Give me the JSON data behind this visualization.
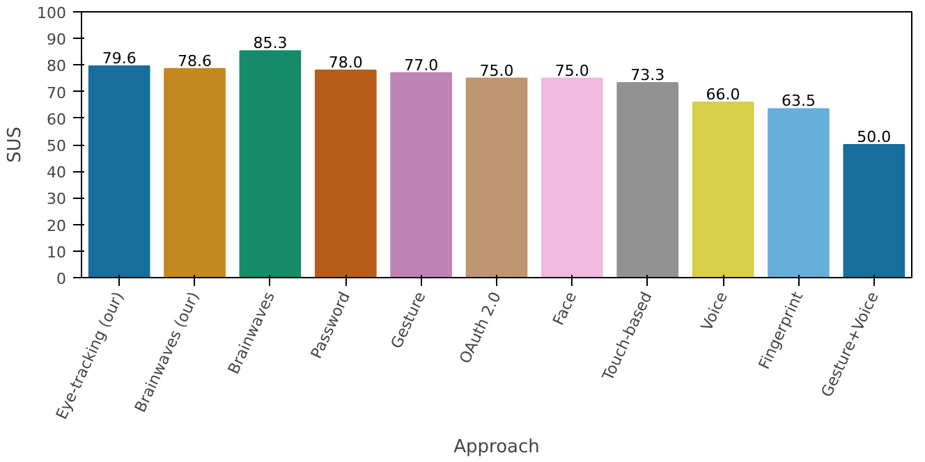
{
  "chart_data": {
    "type": "bar",
    "xlabel": "Approach",
    "ylabel": "SUS",
    "categories": [
      "Eye-tracking (our)",
      "Brainwaves (our)",
      "Brainwaves",
      "Password",
      "Gesture",
      "OAuth 2.0",
      "Face",
      "Touch-based",
      "Voice",
      "Fingerprint",
      "Gesture+Voice"
    ],
    "values": [
      79.6,
      78.6,
      85.3,
      78.0,
      77.0,
      75.0,
      75.0,
      73.3,
      66.0,
      63.5,
      50.0
    ],
    "colors": [
      "#176d9c",
      "#c38820",
      "#158b6a",
      "#b85c1c",
      "#c083b6",
      "#bf9471",
      "#f0b9de",
      "#929292",
      "#d7cf47",
      "#66afda",
      "#176d9c"
    ],
    "ylim": [
      0,
      100
    ],
    "yticks": [
      0,
      10,
      20,
      30,
      40,
      50,
      60,
      70,
      80,
      90,
      100
    ],
    "value_labels": [
      "79.6",
      "78.6",
      "85.3",
      "78.0",
      "77.0",
      "75.0",
      "75.0",
      "73.3",
      "66.0",
      "63.5",
      "50.0"
    ],
    "grid": false
  }
}
